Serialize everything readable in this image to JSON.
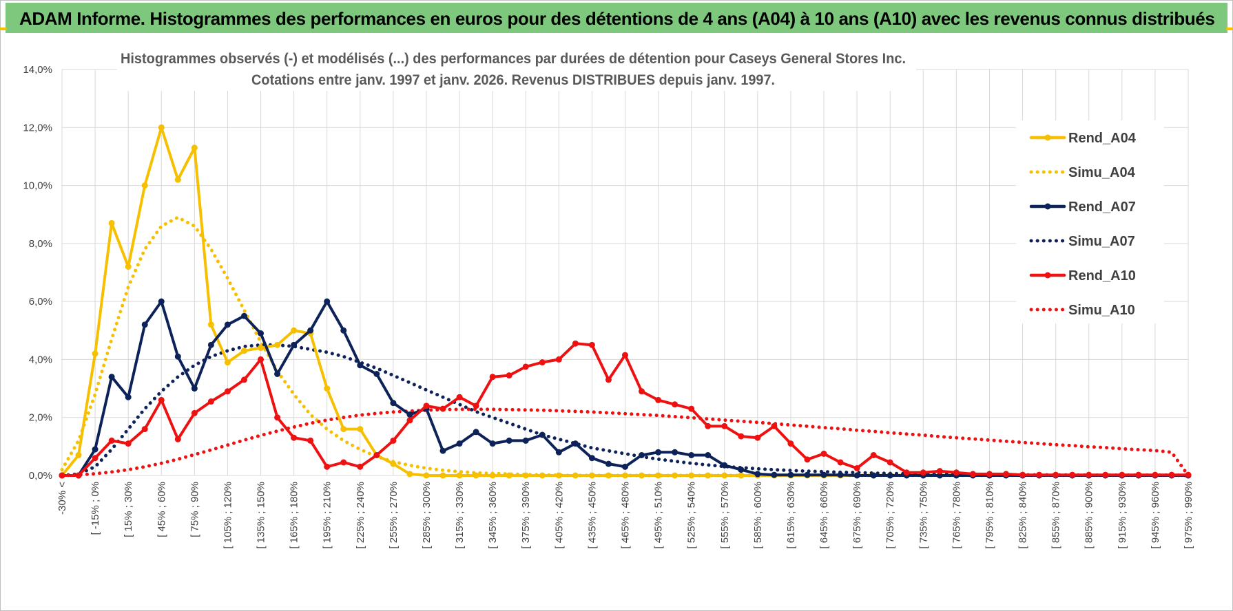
{
  "header": {
    "title": "ADAM Informe. Histogrammes des performances en euros pour des détentions de 4 ans (A04) à 10 ans (A10) avec les revenus connus distribués"
  },
  "colors": {
    "banner": "#7dc87d",
    "A04": "#f6c000",
    "A07": "#0d2258",
    "A10": "#ee1111",
    "grid": "#d9d9d9"
  },
  "chart_data": {
    "type": "line",
    "title": "Histogrammes observés (-) et modélisés (...) des performances par durées de détention pour Caseys General Stores Inc.",
    "subtitle": "Cotations entre janv. 1997 et janv. 2026. Revenus DISTRIBUES depuis janv. 1997.",
    "xlabel": "",
    "ylabel": "",
    "ylim": [
      0,
      14
    ],
    "yticks": [
      "0,0%",
      "2,0%",
      "4,0%",
      "6,0%",
      "8,0%",
      "10,0%",
      "12,0%",
      "14,0%"
    ],
    "grid": true,
    "legend_position": "right",
    "x_tick_labels": [
      "-30% <",
      "[ -15% ; 0%",
      "[ 15% ; 30%",
      "[ 45% ; 60%",
      "[ 75% ; 90%",
      "[ 105% ; 120%",
      "[ 135% ; 150%",
      "[ 165% ; 180%",
      "[ 195% ; 210%",
      "[ 225% ; 240%",
      "[ 255% ; 270%",
      "[ 285% ; 300%",
      "[ 315% ; 330%",
      "[ 345% ; 360%",
      "[ 375% ; 390%",
      "[ 405% ; 420%",
      "[ 435% ; 450%",
      "[ 465% ; 480%",
      "[ 495% ; 510%",
      "[ 525% ; 540%",
      "[ 555% ; 570%",
      "[ 585% ; 600%",
      "[ 615% ; 630%",
      "[ 645% ; 660%",
      "[ 675% ; 690%",
      "[ 705% ; 720%",
      "[ 735% ; 750%",
      "[ 765% ; 780%",
      "[ 795% ; 810%",
      "[ 825% ; 840%",
      "[ 855% ; 870%",
      "[ 885% ; 900%",
      "[ 915% ; 930%",
      "[ 945% ; 960%",
      "[ 975% ; 990%"
    ],
    "num_bins": 69,
    "series": [
      {
        "name": "Rend_A04",
        "style": "solid",
        "color": "#f6c000",
        "values": [
          0.0,
          0.7,
          4.2,
          8.7,
          7.2,
          10.0,
          12.0,
          10.2,
          11.3,
          5.2,
          3.9,
          4.3,
          4.4,
          4.5,
          5.0,
          4.9,
          3.0,
          1.6,
          1.6,
          0.7,
          0.4,
          0.05,
          0,
          0,
          0,
          0,
          0,
          0,
          0,
          0,
          0,
          0,
          0,
          0,
          0,
          0,
          0,
          0,
          0,
          0,
          0,
          0,
          0,
          0,
          0,
          0,
          0,
          0,
          0,
          0,
          0,
          0,
          0,
          0,
          0,
          0,
          0,
          0,
          0,
          0,
          0,
          0,
          0,
          0,
          0,
          0,
          0,
          0,
          0
        ]
      },
      {
        "name": "Simu_A04",
        "style": "dotted",
        "color": "#f6c000",
        "values": [
          0.2,
          1.2,
          2.8,
          4.7,
          6.5,
          7.8,
          8.6,
          8.9,
          8.6,
          7.8,
          6.8,
          5.7,
          4.6,
          3.6,
          2.8,
          2.1,
          1.6,
          1.2,
          0.9,
          0.65,
          0.48,
          0.35,
          0.25,
          0.18,
          0.13,
          0.09,
          0.07,
          0.05,
          0.03,
          0.02,
          0.01,
          0,
          0,
          0,
          0,
          0,
          0,
          0,
          0,
          0,
          0,
          0,
          0,
          0,
          0,
          0,
          0,
          0,
          0,
          0,
          0,
          0,
          0,
          0,
          0,
          0,
          0,
          0,
          0,
          0,
          0,
          0,
          0,
          0,
          0,
          0,
          0,
          0,
          0
        ]
      },
      {
        "name": "Rend_A07",
        "style": "solid",
        "color": "#0d2258",
        "values": [
          0.0,
          0.0,
          0.9,
          3.4,
          2.7,
          5.2,
          6.0,
          4.1,
          3.0,
          4.5,
          5.2,
          5.5,
          4.9,
          3.5,
          4.5,
          5.0,
          6.0,
          5.0,
          3.8,
          3.5,
          2.5,
          2.1,
          2.3,
          0.85,
          1.1,
          1.5,
          1.1,
          1.2,
          1.2,
          1.4,
          0.8,
          1.1,
          0.6,
          0.4,
          0.3,
          0.7,
          0.8,
          0.8,
          0.7,
          0.7,
          0.35,
          0.2,
          0.05,
          0.02,
          0.02,
          0.02,
          0.02,
          0.02,
          0,
          0,
          0,
          0,
          0,
          0,
          0,
          0,
          0,
          0,
          0,
          0,
          0,
          0,
          0,
          0,
          0,
          0,
          0,
          0,
          0
        ]
      },
      {
        "name": "Simu_A07",
        "style": "dotted",
        "color": "#0d2258",
        "values": [
          0.0,
          0.05,
          0.3,
          0.9,
          1.6,
          2.3,
          2.9,
          3.4,
          3.8,
          4.1,
          4.3,
          4.45,
          4.5,
          4.5,
          4.45,
          4.35,
          4.25,
          4.1,
          3.9,
          3.7,
          3.45,
          3.2,
          2.95,
          2.7,
          2.45,
          2.2,
          2.0,
          1.8,
          1.6,
          1.4,
          1.25,
          1.1,
          0.95,
          0.85,
          0.75,
          0.65,
          0.56,
          0.49,
          0.42,
          0.36,
          0.31,
          0.27,
          0.23,
          0.2,
          0.17,
          0.15,
          0.13,
          0.11,
          0.1,
          0.08,
          0.07,
          0.06,
          0.05,
          0.045,
          0.04,
          0.035,
          0.03,
          0.025,
          0.02,
          0.02,
          0.015,
          0.015,
          0.01,
          0.01,
          0.01,
          0.01,
          0.01,
          0.01,
          0.0
        ]
      },
      {
        "name": "Rend_A10",
        "style": "solid",
        "color": "#ee1111",
        "values": [
          0.0,
          0.0,
          0.6,
          1.2,
          1.1,
          1.6,
          2.6,
          1.25,
          2.15,
          2.55,
          2.9,
          3.3,
          4.0,
          2.0,
          1.3,
          1.2,
          0.3,
          0.45,
          0.3,
          0.7,
          1.2,
          1.9,
          2.4,
          2.3,
          2.7,
          2.4,
          3.4,
          3.45,
          3.75,
          3.9,
          4.0,
          4.55,
          4.5,
          3.3,
          4.15,
          2.9,
          2.6,
          2.45,
          2.3,
          1.7,
          1.7,
          1.35,
          1.3,
          1.7,
          1.1,
          0.55,
          0.75,
          0.45,
          0.25,
          0.7,
          0.45,
          0.1,
          0.1,
          0.15,
          0.1,
          0.05,
          0.05,
          0.05,
          0.02,
          0.02,
          0.02,
          0.02,
          0.02,
          0.02,
          0.02,
          0.02,
          0.02,
          0.02,
          0.02
        ]
      },
      {
        "name": "Simu_A10",
        "style": "dotted",
        "color": "#ee1111",
        "values": [
          0.0,
          0.02,
          0.06,
          0.12,
          0.2,
          0.3,
          0.42,
          0.56,
          0.72,
          0.88,
          1.05,
          1.22,
          1.38,
          1.53,
          1.67,
          1.8,
          1.91,
          2.0,
          2.08,
          2.14,
          2.19,
          2.22,
          2.25,
          2.27,
          2.28,
          2.28,
          2.28,
          2.27,
          2.26,
          2.25,
          2.23,
          2.21,
          2.19,
          2.16,
          2.13,
          2.1,
          2.07,
          2.03,
          1.99,
          1.95,
          1.91,
          1.87,
          1.83,
          1.79,
          1.74,
          1.7,
          1.65,
          1.61,
          1.56,
          1.52,
          1.47,
          1.43,
          1.39,
          1.34,
          1.3,
          1.26,
          1.22,
          1.18,
          1.14,
          1.1,
          1.06,
          1.03,
          0.99,
          0.96,
          0.92,
          0.89,
          0.86,
          0.8,
          0.0
        ]
      }
    ]
  }
}
